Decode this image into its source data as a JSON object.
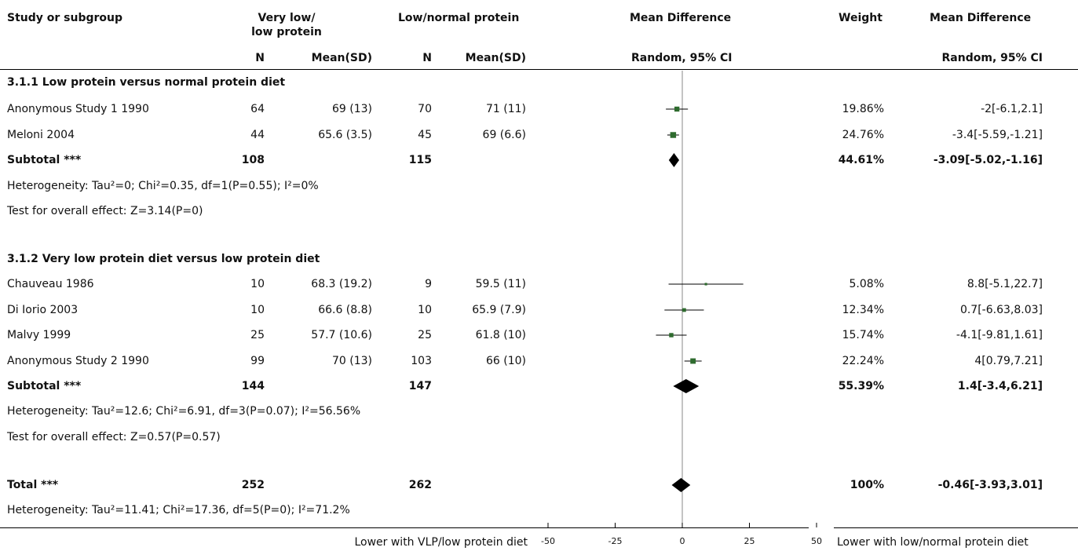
{
  "headers": {
    "study": "Study or subgroup",
    "exp_group": "Very low/ low protein",
    "exp_group_line1": "Very low/",
    "exp_group_line2": "low protein",
    "ctl_group": "Low/normal protein",
    "plot_title": "Mean Difference",
    "weight": "Weight",
    "effect_title": "Mean Difference",
    "n": "N",
    "mean_sd": "Mean(SD)",
    "method": "Random, 95% CI",
    "method_right": "Random, 95% CI"
  },
  "rows": [
    {
      "kind": "group",
      "label": "3.1.1 Low protein versus normal protein diet"
    },
    {
      "kind": "study",
      "label": "Anonymous Study 1 1990",
      "n1": "64",
      "m1": "69 (13)",
      "n2": "70",
      "m2": "71 (11)",
      "weight": "19.86%",
      "effect": "-2[-6.1,2.1]"
    },
    {
      "kind": "study",
      "label": "Meloni 2004",
      "n1": "44",
      "m1": "65.6 (3.5)",
      "n2": "45",
      "m2": "69 (6.6)",
      "weight": "24.76%",
      "effect": "-3.4[-5.59,-1.21]"
    },
    {
      "kind": "subtotal",
      "label": "Subtotal ***",
      "n1": "108",
      "n2": "115",
      "weight": "44.61%",
      "effect": "-3.09[-5.02,-1.16]"
    },
    {
      "kind": "note",
      "label": "Heterogeneity: Tau²=0; Chi²=0.35, df=1(P=0.55); I²=0%"
    },
    {
      "kind": "note",
      "label": "Test for overall effect: Z=3.14(P=0)"
    },
    {
      "kind": "group",
      "label": "3.1.2 Very low protein diet versus low protein diet"
    },
    {
      "kind": "study",
      "label": "Chauveau 1986",
      "n1": "10",
      "m1": "68.3 (19.2)",
      "n2": "9",
      "m2": "59.5 (11)",
      "weight": "5.08%",
      "effect": "8.8[-5.1,22.7]"
    },
    {
      "kind": "study",
      "label": "Di Iorio 2003",
      "n1": "10",
      "m1": "66.6 (8.8)",
      "n2": "10",
      "m2": "65.9 (7.9)",
      "weight": "12.34%",
      "effect": "0.7[-6.63,8.03]"
    },
    {
      "kind": "study",
      "label": "Malvy 1999",
      "n1": "25",
      "m1": "57.7 (10.6)",
      "n2": "25",
      "m2": "61.8 (10)",
      "weight": "15.74%",
      "effect": "-4.1[-9.81,1.61]"
    },
    {
      "kind": "study",
      "label": "Anonymous Study 2 1990",
      "n1": "99",
      "m1": "70 (13)",
      "n2": "103",
      "m2": "66 (10)",
      "weight": "22.24%",
      "effect": "4[0.79,7.21]"
    },
    {
      "kind": "subtotal",
      "label": "Subtotal ***",
      "n1": "144",
      "n2": "147",
      "weight": "55.39%",
      "effect": "1.4[-3.4,6.21]"
    },
    {
      "kind": "note",
      "label": "Heterogeneity: Tau²=12.6; Chi²=6.91, df=3(P=0.07); I²=56.56%"
    },
    {
      "kind": "note",
      "label": "Test for overall effect: Z=0.57(P=0.57)"
    },
    {
      "kind": "total",
      "label": "Total ***",
      "n1": "252",
      "n2": "262",
      "weight": "100%",
      "effect": "-0.46[-3.93,3.01]"
    },
    {
      "kind": "note",
      "label": "Heterogeneity: Tau²=11.41; Chi²=17.36, df=5(P=0); I²=71.2%"
    }
  ],
  "footer": {
    "left_label": "Lower with VLP/low protein diet",
    "right_label": "Lower with low/normal protein diet"
  },
  "colors": {
    "study_marker": "#2e6b2e",
    "diamond": "#000000",
    "lines": "#000000",
    "zero_line": "#888888"
  },
  "chart_data": {
    "type": "forest",
    "xlim": [
      -50,
      50
    ],
    "xticks": [
      -50,
      -25,
      0,
      25,
      50
    ],
    "xtick_labels": [
      "-50",
      "-25",
      "0",
      "25",
      "50"
    ],
    "null_value": 0,
    "studies": [
      {
        "name": "Anonymous Study 1 1990",
        "md": -2,
        "lo": -6.1,
        "hi": 2.1,
        "weight": 19.86
      },
      {
        "name": "Meloni 2004",
        "md": -3.4,
        "lo": -5.59,
        "hi": -1.21,
        "weight": 24.76
      },
      {
        "name": "Chauveau 1986",
        "md": 8.8,
        "lo": -5.1,
        "hi": 22.7,
        "weight": 5.08
      },
      {
        "name": "Di Iorio 2003",
        "md": 0.7,
        "lo": -6.63,
        "hi": 8.03,
        "weight": 12.34
      },
      {
        "name": "Malvy 1999",
        "md": -4.1,
        "lo": -9.81,
        "hi": 1.61,
        "weight": 15.74
      },
      {
        "name": "Anonymous Study 2 1990",
        "md": 4,
        "lo": 0.79,
        "hi": 7.21,
        "weight": 22.24
      }
    ],
    "pooled": [
      {
        "name": "Subtotal 3.1.1",
        "md": -3.09,
        "lo": -5.02,
        "hi": -1.16
      },
      {
        "name": "Subtotal 3.1.2",
        "md": 1.4,
        "lo": -3.4,
        "hi": 6.21
      },
      {
        "name": "Total",
        "md": -0.46,
        "lo": -3.93,
        "hi": 3.01
      }
    ]
  }
}
